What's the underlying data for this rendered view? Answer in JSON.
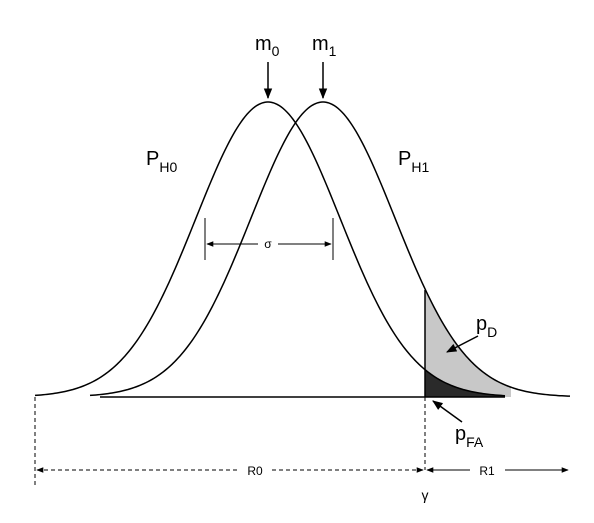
{
  "labels": {
    "m0": {
      "base": "m",
      "sub": "0"
    },
    "m1": {
      "base": "m",
      "sub": "1"
    },
    "ph0": {
      "base": "P",
      "sub": "H0"
    },
    "ph1": {
      "base": "P",
      "sub": "H1"
    },
    "sigma": "σ",
    "pd": {
      "base": "p",
      "sub": "D"
    },
    "pfa": {
      "base": "p",
      "sub": "FA"
    },
    "r0": "R0",
    "r1": "R1",
    "gamma": "γ"
  }
}
